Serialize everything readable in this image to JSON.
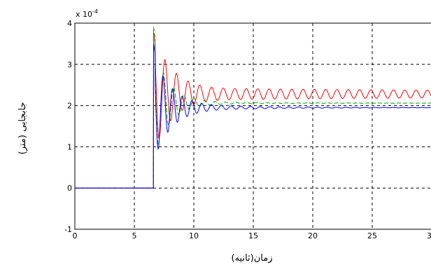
{
  "chart_data": {
    "type": "line",
    "title": "",
    "xlabel": "زمان(ثانیه)",
    "ylabel": "جابجایی (متر)",
    "multiplier": "x 10",
    "multiplier_exp": "-4",
    "xlim": [
      0,
      30
    ],
    "ylim": [
      -1,
      4
    ],
    "x_ticks": [
      0,
      5,
      10,
      15,
      20,
      25,
      30
    ],
    "y_ticks": [
      -1,
      0,
      1,
      2,
      3,
      4
    ],
    "grid": true,
    "legend": "none",
    "step_time": 6.6,
    "series": [
      {
        "color": "#ff0000",
        "style": "solid",
        "final": 2.28,
        "peak": 3.8,
        "osc_amp": 1.4,
        "osc_period": 0.95,
        "decay": 0.55,
        "tail_amp": 0.15,
        "tail_decay": 0.02
      },
      {
        "color": "#00a000",
        "style": "dashed",
        "final": 2.06,
        "peak": 3.95,
        "osc_amp": 1.4,
        "osc_period": 0.85,
        "decay": 0.75,
        "tail_amp": 0.06,
        "tail_decay": 0.18
      },
      {
        "color": "#0000ff",
        "style": "solid",
        "final": 1.95,
        "peak": 3.55,
        "osc_amp": 1.3,
        "osc_period": 0.8,
        "decay": 0.65,
        "tail_amp": 0.1,
        "tail_decay": 0.15
      }
    ]
  }
}
